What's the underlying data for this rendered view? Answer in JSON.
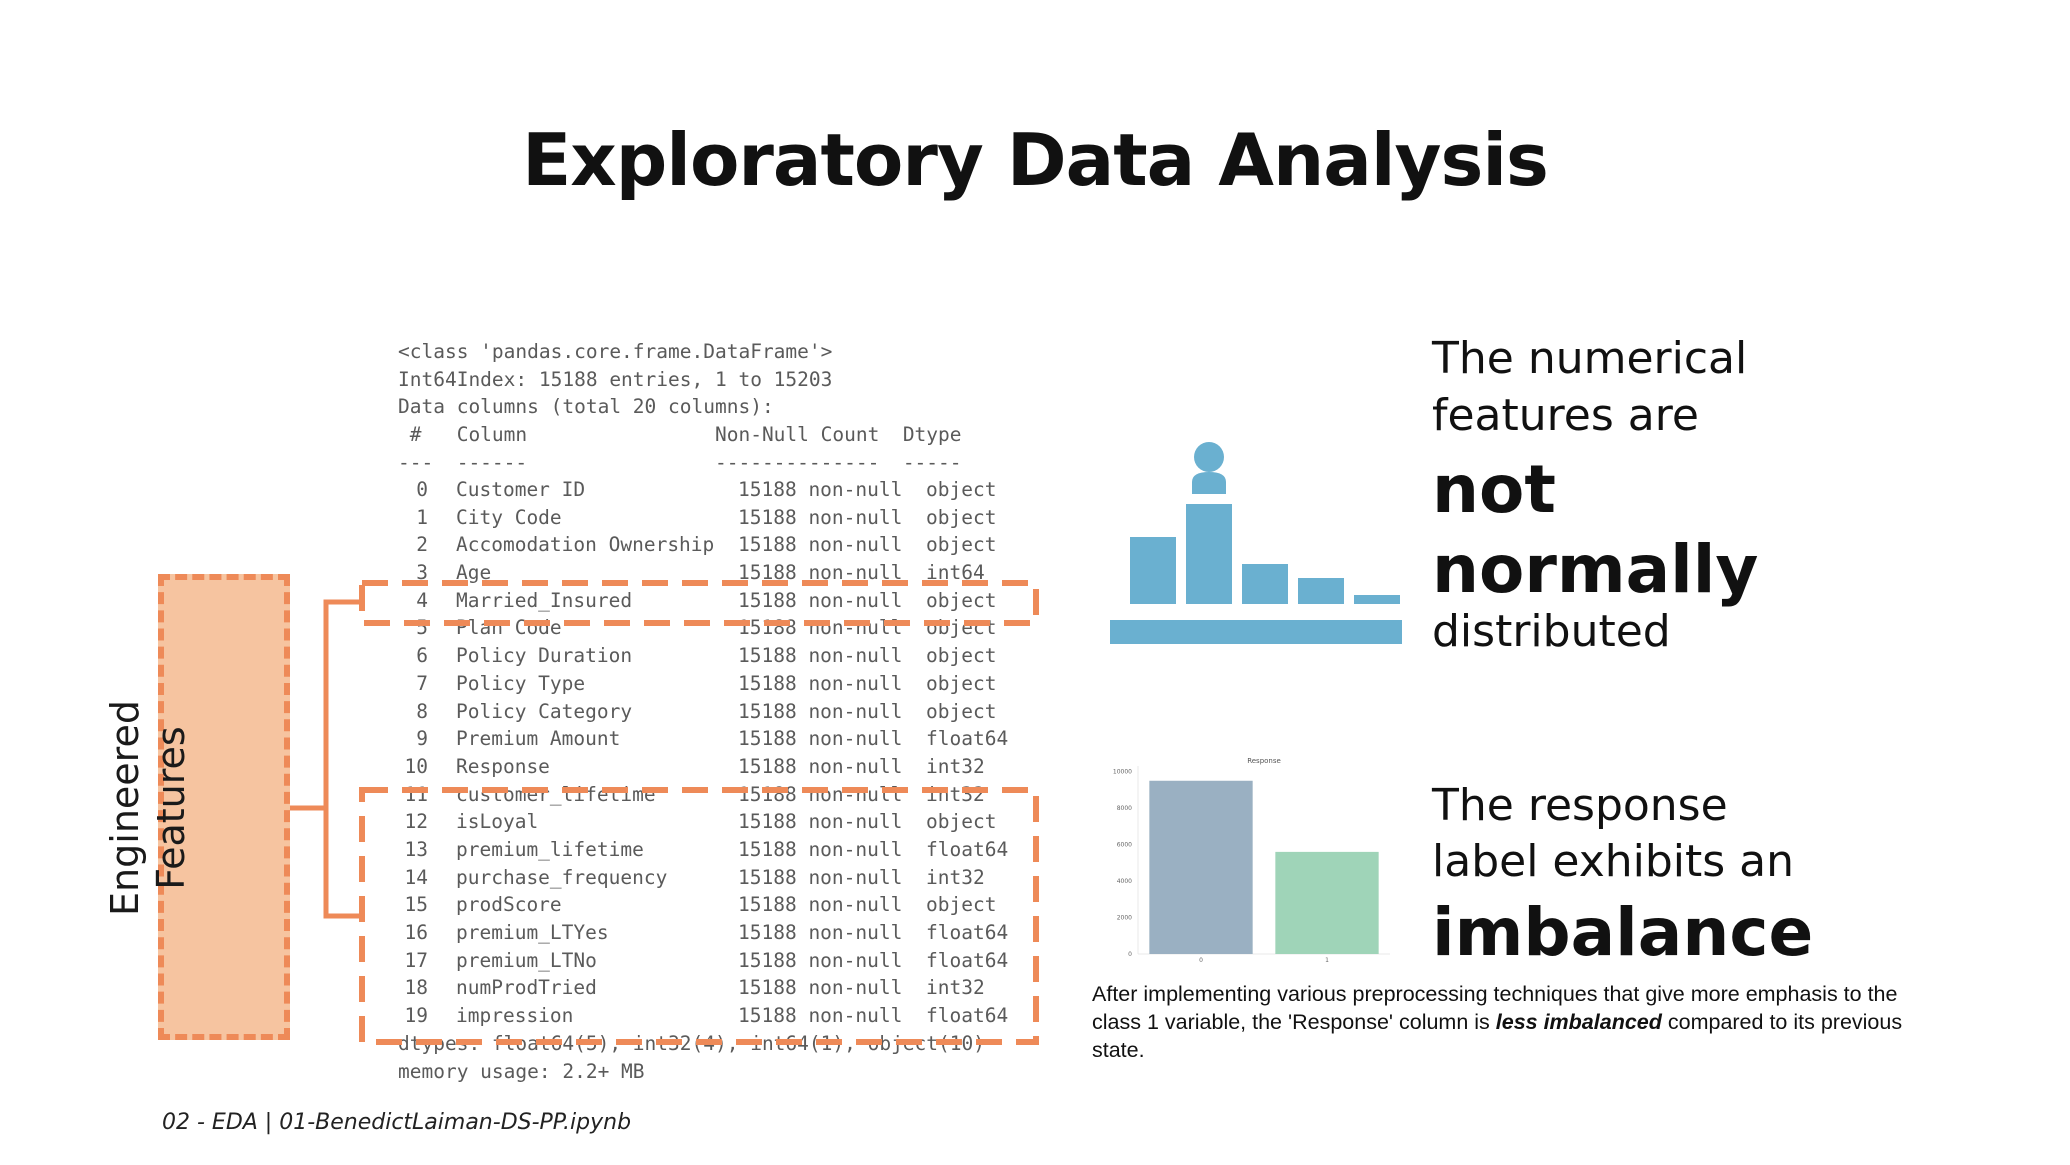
{
  "slide": {
    "title": "Exploratory Data Analysis",
    "footer": "02 - EDA | 01-BenedictLaiman-DS-PP.ipynb"
  },
  "code": {
    "header_lines": [
      "<class 'pandas.core.frame.DataFrame'>",
      "Int64Index: 15188 entries, 1 to 15203",
      "Data columns (total 20 columns):",
      " #   Column                Non-Null Count  Dtype  ",
      "---  ------                --------------  -----  "
    ],
    "rows": [
      {
        "idx": "0",
        "column": "Customer ID",
        "count": "15188 non-null",
        "dtype": "object"
      },
      {
        "idx": "1",
        "column": "City Code",
        "count": "15188 non-null",
        "dtype": "object"
      },
      {
        "idx": "2",
        "column": "Accomodation Ownership",
        "count": "15188 non-null",
        "dtype": "object"
      },
      {
        "idx": "3",
        "column": "Age",
        "count": "15188 non-null",
        "dtype": "int64"
      },
      {
        "idx": "4",
        "column": "Married_Insured",
        "count": "15188 non-null",
        "dtype": "object"
      },
      {
        "idx": "5",
        "column": "Plan Code",
        "count": "15188 non-null",
        "dtype": "object"
      },
      {
        "idx": "6",
        "column": "Policy Duration",
        "count": "15188 non-null",
        "dtype": "object"
      },
      {
        "idx": "7",
        "column": "Policy Type",
        "count": "15188 non-null",
        "dtype": "object"
      },
      {
        "idx": "8",
        "column": "Policy Category",
        "count": "15188 non-null",
        "dtype": "object"
      },
      {
        "idx": "9",
        "column": "Premium Amount",
        "count": "15188 non-null",
        "dtype": "float64"
      },
      {
        "idx": "10",
        "column": "Response",
        "count": "15188 non-null",
        "dtype": "int32"
      },
      {
        "idx": "11",
        "column": "customer_lifetime",
        "count": "15188 non-null",
        "dtype": "int32"
      },
      {
        "idx": "12",
        "column": "isLoyal",
        "count": "15188 non-null",
        "dtype": "object"
      },
      {
        "idx": "13",
        "column": "premium_lifetime",
        "count": "15188 non-null",
        "dtype": "float64"
      },
      {
        "idx": "14",
        "column": "purchase_frequency",
        "count": "15188 non-null",
        "dtype": "int32"
      },
      {
        "idx": "15",
        "column": "prodScore",
        "count": "15188 non-null",
        "dtype": "object"
      },
      {
        "idx": "16",
        "column": "premium_LTYes",
        "count": "15188 non-null",
        "dtype": "float64"
      },
      {
        "idx": "17",
        "column": "premium_LTNo",
        "count": "15188 non-null",
        "dtype": "float64"
      },
      {
        "idx": "18",
        "column": "numProdTried",
        "count": "15188 non-null",
        "dtype": "int32"
      },
      {
        "idx": "19",
        "column": "impression",
        "count": "15188 non-null",
        "dtype": "float64"
      }
    ],
    "footer_lines": [
      "dtypes: float64(5), int32(4), int64(1), object(10)",
      "memory usage: 2.2+ MB"
    ]
  },
  "engineered": {
    "line1": "Engineered",
    "line2": "Features",
    "box_fill": "#f6c4a0",
    "dash_color": "#ee8a58"
  },
  "insight1": {
    "lead1": "The numerical",
    "lead2": "features are",
    "emph1": "not",
    "emph2": "normally",
    "tail": "distributed",
    "icon": "histogram-person-icon",
    "icon_color": "#6ab0d0"
  },
  "insight2": {
    "lead1": "The response",
    "lead2": "label exhibits an",
    "emph": "imbalance",
    "note_pre": "After implementing various preprocessing techniques that give more emphasis to the class 1 variable, the 'Response' column is ",
    "note_emph": "less imbalanced",
    "note_post": " compared to its previous state."
  },
  "chart_data": {
    "type": "bar",
    "title": "Response",
    "categories": [
      "0",
      "1"
    ],
    "values": [
      9500,
      5600
    ],
    "yticks": [
      0,
      2000,
      4000,
      6000,
      8000,
      10000
    ],
    "ylim": [
      0,
      10200
    ],
    "colors": [
      "#9ab0c2",
      "#9fd4b8"
    ],
    "grid": false
  }
}
